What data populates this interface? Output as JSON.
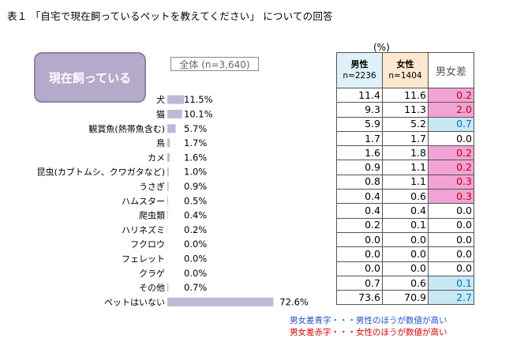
{
  "title": "表１ 「自宅で現在飼っているペットを教えてください」 についての回答",
  "question_label": "現在飼っている",
  "total_label": "全体 (n=3,640)",
  "unit_label": "(%)",
  "table_headers": {
    "male": "男性",
    "male_n": "n=2236",
    "female": "女性",
    "female_n": "n=1404",
    "diff": "男女差"
  },
  "colors": {
    "bar": "#c2b7d6",
    "diff_positive_bg": "#f2a3d6",
    "diff_negative_bg": "#c8e9f4",
    "male_header_bg": "#dff1f8",
    "female_header_bg": "#fde8cf"
  },
  "chart_data": {
    "type": "bar",
    "orientation": "horizontal",
    "categories": [
      "犬",
      "猫",
      "観賞魚(熱帯魚含む)",
      "鳥",
      "カメ",
      "昆虫(カブトムシ、クワガタなど)",
      "うさぎ",
      "ハムスター",
      "爬虫類",
      "ハリネズミ",
      "フクロウ",
      "フェレット",
      "クラゲ",
      "その他",
      "ペットはいない"
    ],
    "values": [
      11.5,
      10.1,
      5.7,
      1.7,
      1.6,
      1.0,
      0.9,
      0.5,
      0.4,
      0.2,
      0.0,
      0.0,
      0.0,
      0.7,
      72.6
    ],
    "value_labels": [
      "11.5%",
      "10.1%",
      "5.7%",
      "1.7%",
      "1.6%",
      "1.0%",
      "0.9%",
      "0.5%",
      "0.4%",
      "0.2%",
      "0.0%",
      "0.0%",
      "0.0%",
      "0.7%",
      "72.6%"
    ],
    "series_name": "全体 (n=3,640)",
    "xlim": [
      0,
      100
    ]
  },
  "table_data": {
    "male": [
      "11.4",
      "9.3",
      "5.9",
      "1.7",
      "1.6",
      "0.9",
      "0.8",
      "0.4",
      "0.4",
      "0.2",
      "0.0",
      "0.0",
      "0.0",
      "0.7",
      "73.6"
    ],
    "female": [
      "11.6",
      "11.3",
      "5.2",
      "1.7",
      "1.8",
      "1.1",
      "1.1",
      "0.6",
      "0.4",
      "0.1",
      "0.0",
      "0.0",
      "0.0",
      "0.6",
      "70.9"
    ],
    "diff": [
      "0.2",
      "2.0",
      "0.7",
      "0.0",
      "0.2",
      "0.2",
      "0.3",
      "0.3",
      "0.0",
      "0.0",
      "0.0",
      "0.0",
      "0.0",
      "0.1",
      "2.7"
    ],
    "diff_sign": [
      "pos",
      "pos",
      "neg",
      "zero",
      "pos",
      "pos",
      "pos",
      "pos",
      "zero",
      "zero",
      "zero",
      "zero",
      "zero",
      "neg",
      "neg"
    ]
  },
  "notes": {
    "blue": "男女差青字・・・男性のほうが数値が高い",
    "red": "男女差赤字・・・女性のほうが数値が高い"
  }
}
